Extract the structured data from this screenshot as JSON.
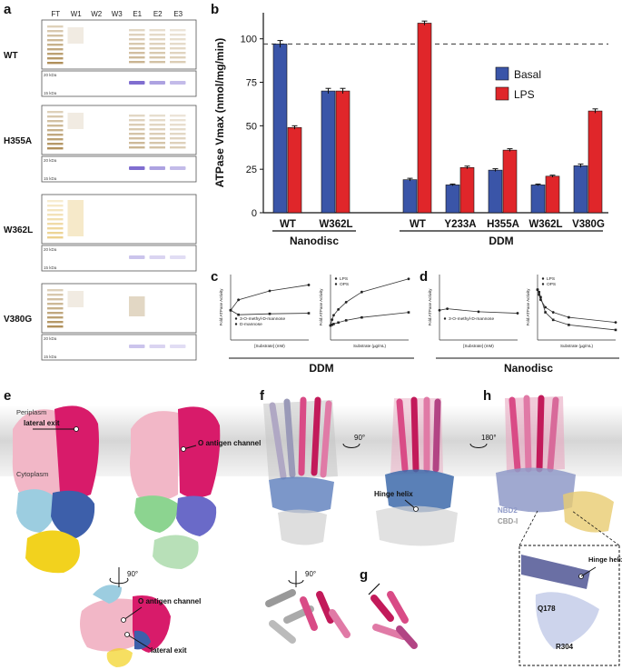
{
  "panels": {
    "a": "a",
    "b": "b",
    "c": "c",
    "d": "d",
    "e": "e",
    "f": "f",
    "g": "g",
    "h": "h"
  },
  "gel": {
    "lanes": [
      "FT",
      "W1",
      "W2",
      "W3",
      "E1",
      "E2",
      "E3"
    ],
    "markers": [
      "20 kDa",
      "15 kDa"
    ],
    "rows": [
      {
        "label": "WT",
        "ladder": "dark",
        "elution": "dark",
        "ft": true
      },
      {
        "label": "H355A",
        "ladder": "dark",
        "elution": "dark",
        "ft": true
      },
      {
        "label": "W362L",
        "ladder": "faint",
        "elution": "faint",
        "ft": true
      },
      {
        "label": "V380G",
        "ladder": "dark",
        "elution": "faint",
        "ft": true
      }
    ],
    "colors": {
      "silver": "#a07a3a",
      "silver_faint": "#e8c878",
      "coomassie": "#6a55c8"
    }
  },
  "chart_data": [
    {
      "type": "bar",
      "panel": "b",
      "ylabel": "ATPase Vmax (nmol/mg/min)",
      "ylim": [
        0,
        115
      ],
      "yticks": [
        0,
        25,
        50,
        75,
        100
      ],
      "categories": [
        "WT",
        "W362L",
        "WT",
        "Y233A",
        "H355A",
        "W362L",
        "V380G"
      ],
      "groups": [
        {
          "label": "Nanodisc",
          "categories": [
            "WT",
            "W362L"
          ]
        },
        {
          "label": "DDM",
          "categories": [
            "WT",
            "Y233A",
            "H355A",
            "W362L",
            "V380G"
          ]
        }
      ],
      "series": [
        {
          "name": "Basal",
          "color": "#3a55a8",
          "values": [
            97,
            70,
            19,
            16,
            24.5,
            16,
            27
          ],
          "errors": [
            2,
            1.5,
            0.8,
            0.5,
            0.8,
            0.5,
            1
          ]
        },
        {
          "name": "LPS",
          "color": "#e0262a",
          "values": [
            49,
            70,
            109,
            26,
            36,
            21,
            58.5
          ],
          "errors": [
            1,
            1.5,
            1.2,
            0.8,
            0.8,
            0.6,
            1.2
          ]
        }
      ],
      "reference_line": 97,
      "legend": "top-right"
    },
    {
      "type": "line",
      "panel": "c-left",
      "ylabel": "Fold ATPase Activity",
      "xlabel": "[Substrate] (mM)",
      "series": [
        {
          "name": "3-O-methyl-D-mannose",
          "x": [
            0,
            1,
            5,
            10
          ],
          "y": [
            1.0,
            1.35,
            1.65,
            1.85
          ]
        },
        {
          "name": "D-mannose",
          "x": [
            0,
            1,
            5,
            10
          ],
          "y": [
            1.0,
            0.85,
            0.88,
            0.9
          ]
        }
      ]
    },
    {
      "type": "line",
      "panel": "c-right",
      "ylabel": "Fold ATPase Activity",
      "xlabel": "Substrate (µg/mL)",
      "series": [
        {
          "name": "LPS",
          "x": [
            0,
            1,
            2,
            5,
            10,
            20,
            50
          ],
          "y": [
            1.0,
            1.4,
            1.7,
            2.1,
            2.6,
            3.3,
            4.2
          ]
        },
        {
          "name": "OPS",
          "x": [
            0,
            1,
            2,
            5,
            10,
            20,
            50
          ],
          "y": [
            1.0,
            1.05,
            1.1,
            1.2,
            1.35,
            1.55,
            1.9
          ]
        }
      ],
      "legend": "top-left"
    },
    {
      "type": "line",
      "panel": "d-left",
      "ylabel": "Fold ATPase Activity",
      "xlabel": "[Substrate] (mM)",
      "series": [
        {
          "name": "3-O-methyl-D-mannose",
          "x": [
            0,
            1,
            5,
            10
          ],
          "y": [
            1.0,
            1.05,
            0.95,
            0.9
          ]
        }
      ]
    },
    {
      "type": "line",
      "panel": "d-right",
      "ylabel": "Fold ATPase Activity",
      "xlabel": "Substrate (µg/mL)",
      "series": [
        {
          "name": "LPS",
          "x": [
            0,
            1,
            2,
            5,
            10,
            20,
            50
          ],
          "y": [
            1.0,
            0.9,
            0.8,
            0.65,
            0.55,
            0.45,
            0.35
          ]
        },
        {
          "name": "OPS",
          "x": [
            0,
            1,
            2,
            5,
            10,
            20,
            50
          ],
          "y": [
            1.0,
            0.95,
            0.85,
            0.55,
            0.4,
            0.3,
            0.2
          ]
        }
      ],
      "legend": "top-left"
    }
  ],
  "cd_labels": {
    "c": "DDM",
    "d": "Nanodisc"
  },
  "structure": {
    "periplasm": "Periplasm",
    "cytoplasm": "Cytoplasm",
    "lateral_exit": "lateral exit",
    "o_antigen_channel": "O antigen channel",
    "o_antigen_channel_2": "O antigen channel",
    "lateral_exit_2": "lateral exit",
    "rot90": "90°",
    "rot90_f": "90°",
    "rot180": "180°",
    "rot90_f2": "90°",
    "hinge_helix": "Hinge helix",
    "nbd2": "NBD2",
    "cbd1": "CBD-I",
    "q178": "Q178",
    "r304": "R304",
    "hinge_helix_h": "Hinge helix"
  },
  "colors": {
    "pink_light": "#f0b8c8",
    "magenta": "#d81b6a",
    "blue": "#3d5faa",
    "light_blue": "#9ccde0",
    "yellow": "#f2d21e",
    "green": "#8cd490",
    "grey": "#b0b0b0",
    "membrane": "#d8d8d8"
  }
}
